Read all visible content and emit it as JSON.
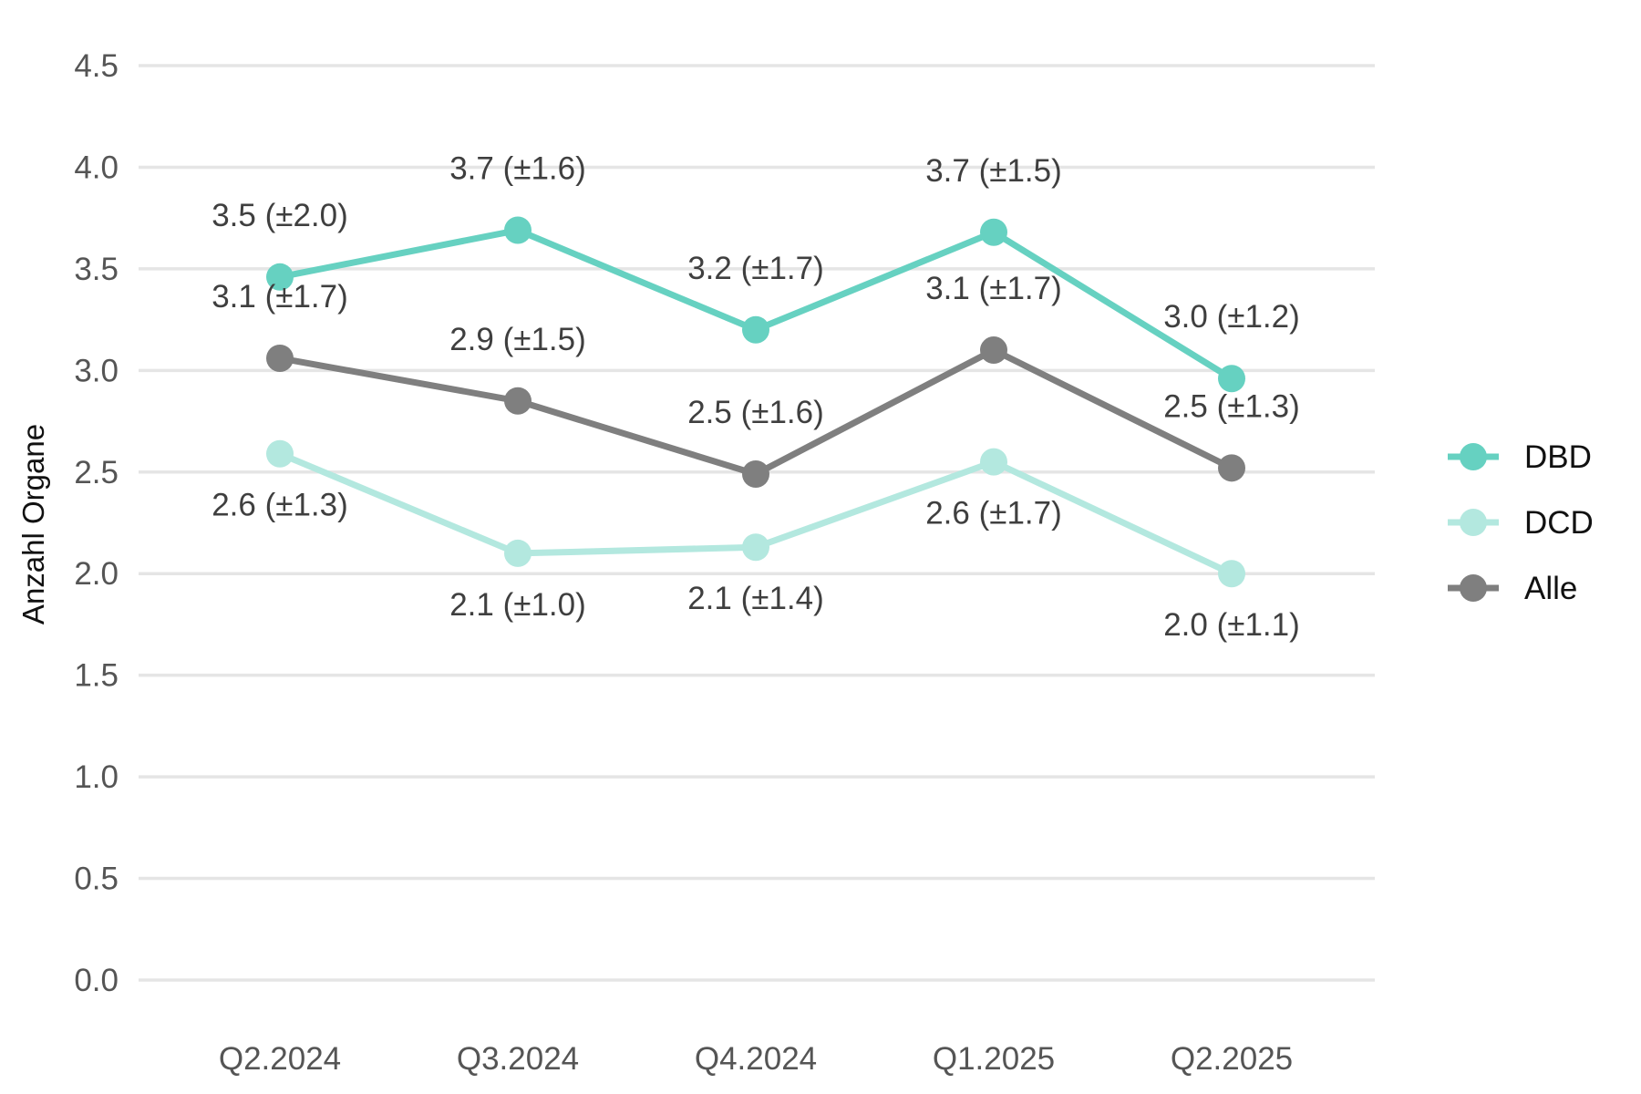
{
  "chart_data": {
    "type": "line",
    "title": "",
    "xlabel": "",
    "ylabel": "Anzahl Organe",
    "categories": [
      "Q2.2024",
      "Q3.2024",
      "Q4.2024",
      "Q1.2025",
      "Q2.2025"
    ],
    "ylim": [
      0,
      4.5
    ],
    "yticks": [
      0.0,
      0.5,
      1.0,
      1.5,
      2.0,
      2.5,
      3.0,
      3.5,
      4.0,
      4.5
    ],
    "ytick_labels": [
      "0.0",
      "0.5",
      "1.0",
      "1.5",
      "2.0",
      "2.5",
      "3.0",
      "3.5",
      "4.0",
      "4.5"
    ],
    "grid": "horizontal",
    "legend_position": "right",
    "series": [
      {
        "name": "DBD",
        "color": "#66d1c1",
        "values": [
          3.46,
          3.69,
          3.2,
          3.68,
          2.96
        ],
        "labels": [
          "3.5 (±2.0)",
          "3.7 (±1.6)",
          "3.2 (±1.7)",
          "3.7 (±1.5)",
          "3.0 (±1.2)"
        ],
        "label_position": "above"
      },
      {
        "name": "DCD",
        "color": "#b3e8df",
        "values": [
          2.59,
          2.1,
          2.13,
          2.55,
          2.0
        ],
        "labels": [
          "2.6 (±1.3)",
          "2.1 (±1.0)",
          "2.1 (±1.4)",
          "2.6 (±1.7)",
          "2.0 (±1.1)"
        ],
        "label_position": "below"
      },
      {
        "name": "Alle",
        "color": "#7f7f7f",
        "values": [
          3.06,
          2.85,
          2.49,
          3.1,
          2.52
        ],
        "labels": [
          "3.1 (±1.7)",
          "2.9 (±1.5)",
          "2.5 (±1.6)",
          "3.1 (±1.7)",
          "2.5 (±1.3)"
        ],
        "label_position": "above"
      }
    ]
  }
}
